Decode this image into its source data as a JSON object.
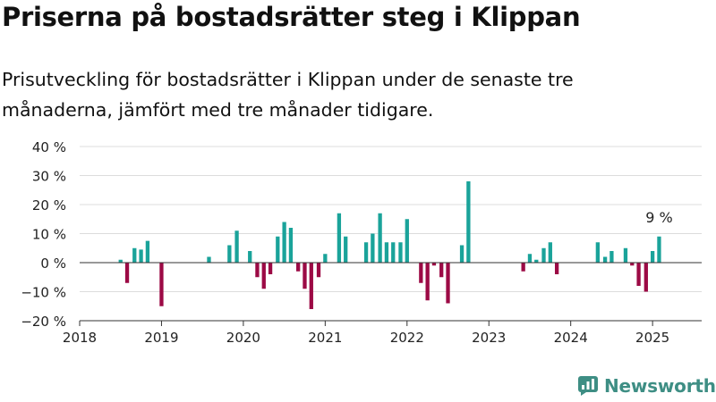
{
  "header": {
    "title": "Priserna på bostadsrätter steg i Klippan",
    "subtitle": "Prisutveckling för bostadsrätter i Klippan under de senaste tre månaderna, jämfört med tre månader tidigare."
  },
  "brand": {
    "name": "Newsworthy",
    "icon": "newsworthy-logo-icon",
    "color": "#3e8e84"
  },
  "colors": {
    "positive": "#1aa39a",
    "negative": "#9c0a45"
  },
  "chart_data": {
    "type": "bar",
    "x_unit": "decimal year (month-end)",
    "ylim": [
      -20,
      40
    ],
    "xlim": [
      2018,
      2025.6
    ],
    "yticks": [
      -20,
      -10,
      0,
      10,
      20,
      30,
      40
    ],
    "ytick_labels": [
      "−20 %",
      "−10 %",
      "0 %",
      "10 %",
      "20 %",
      "30 %",
      "40 %"
    ],
    "xticks": [
      2018,
      2019,
      2020,
      2021,
      2022,
      2023,
      2024,
      2025
    ],
    "xtick_labels": [
      "2018",
      "2019",
      "2020",
      "2021",
      "2022",
      "2023",
      "2024",
      "2025"
    ],
    "grid": true,
    "annotation": {
      "text": "9 %",
      "x": 2025.08,
      "y": 9
    },
    "points": [
      {
        "x": 2018.5,
        "y": 1
      },
      {
        "x": 2018.58,
        "y": -7
      },
      {
        "x": 2018.67,
        "y": 5
      },
      {
        "x": 2018.75,
        "y": 4.5
      },
      {
        "x": 2018.83,
        "y": 7.5
      },
      {
        "x": 2019.0,
        "y": -15
      },
      {
        "x": 2019.58,
        "y": 2
      },
      {
        "x": 2019.83,
        "y": 6
      },
      {
        "x": 2019.92,
        "y": 11
      },
      {
        "x": 2020.08,
        "y": 4
      },
      {
        "x": 2020.17,
        "y": -5
      },
      {
        "x": 2020.25,
        "y": -9
      },
      {
        "x": 2020.33,
        "y": -4
      },
      {
        "x": 2020.42,
        "y": 9
      },
      {
        "x": 2020.5,
        "y": 14
      },
      {
        "x": 2020.58,
        "y": 12
      },
      {
        "x": 2020.67,
        "y": -3
      },
      {
        "x": 2020.75,
        "y": -9
      },
      {
        "x": 2020.83,
        "y": -16
      },
      {
        "x": 2020.92,
        "y": -5
      },
      {
        "x": 2021.0,
        "y": 3
      },
      {
        "x": 2021.17,
        "y": 17
      },
      {
        "x": 2021.25,
        "y": 9
      },
      {
        "x": 2021.5,
        "y": 7
      },
      {
        "x": 2021.58,
        "y": 10
      },
      {
        "x": 2021.67,
        "y": 17
      },
      {
        "x": 2021.75,
        "y": 7
      },
      {
        "x": 2021.83,
        "y": 7
      },
      {
        "x": 2021.92,
        "y": 7
      },
      {
        "x": 2022.0,
        "y": 15
      },
      {
        "x": 2022.17,
        "y": -7
      },
      {
        "x": 2022.25,
        "y": -13
      },
      {
        "x": 2022.33,
        "y": -1
      },
      {
        "x": 2022.42,
        "y": -5
      },
      {
        "x": 2022.5,
        "y": -14
      },
      {
        "x": 2022.67,
        "y": 6
      },
      {
        "x": 2022.75,
        "y": 28
      },
      {
        "x": 2023.42,
        "y": -3
      },
      {
        "x": 2023.5,
        "y": 3
      },
      {
        "x": 2023.58,
        "y": 1
      },
      {
        "x": 2023.67,
        "y": 5
      },
      {
        "x": 2023.75,
        "y": 7
      },
      {
        "x": 2023.83,
        "y": -4
      },
      {
        "x": 2024.33,
        "y": 7
      },
      {
        "x": 2024.42,
        "y": 2
      },
      {
        "x": 2024.5,
        "y": 4
      },
      {
        "x": 2024.67,
        "y": 5
      },
      {
        "x": 2024.75,
        "y": -1
      },
      {
        "x": 2024.83,
        "y": -8
      },
      {
        "x": 2024.92,
        "y": -10
      },
      {
        "x": 2025.0,
        "y": 4
      },
      {
        "x": 2025.08,
        "y": 9
      }
    ]
  }
}
